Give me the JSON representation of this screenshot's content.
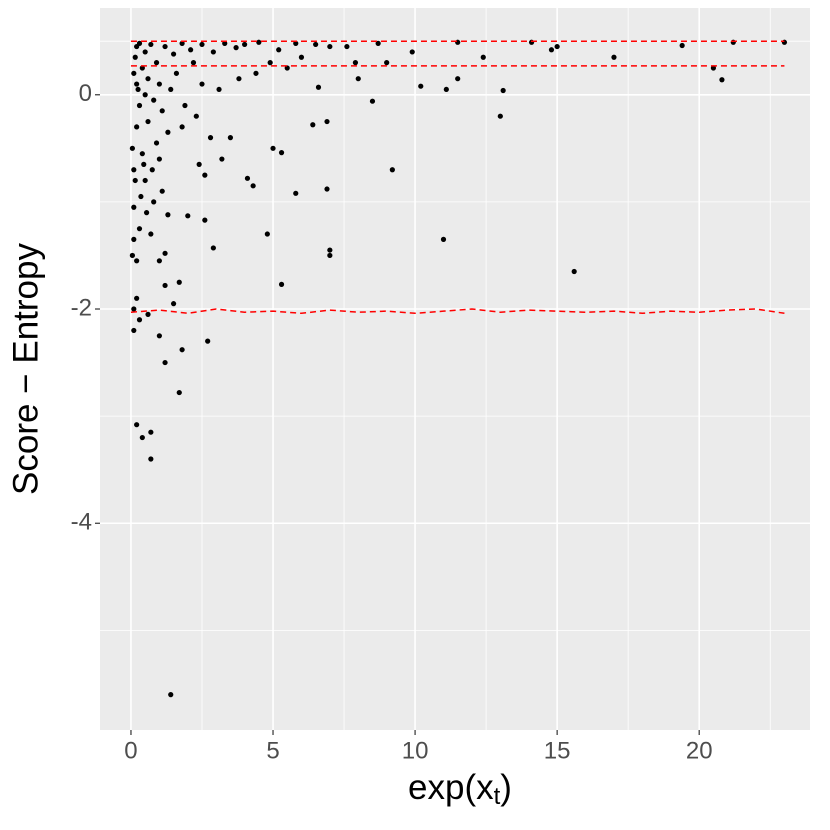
{
  "chart_data": {
    "type": "scatter",
    "x_label": [
      "exp(x",
      "t",
      ")"
    ],
    "y_label": "Score − Entropy",
    "xlim": [
      -1.09,
      23.9
    ],
    "ylim": [
      -5.93,
      0.81
    ],
    "xticks": [
      0,
      5,
      10,
      15,
      20
    ],
    "yticks": [
      -4,
      -2,
      0
    ],
    "x_minor_ticks": [
      2.5,
      7.5,
      12.5,
      17.5,
      22.5
    ],
    "y_minor_ticks": [
      -5,
      -3,
      -1,
      0.5
    ],
    "grid": true,
    "background": "#ebebeb",
    "series": [
      {
        "color": "#000000",
        "x": [
          1.4,
          0.2,
          0.4,
          0.7,
          0.7,
          1.7,
          1.2,
          1.0,
          1.8,
          2.7,
          0.1,
          0.3,
          0.6,
          1.5,
          0.2,
          0.1,
          1.2,
          1.7,
          5.3,
          15.6,
          1.0,
          0.2,
          1.2,
          0.1,
          0.7,
          2.9,
          4.8,
          7.0,
          7.0,
          11.0,
          0.1,
          0.8,
          1.3,
          2.0,
          2.6,
          0.1,
          5.8,
          6.9,
          9.2,
          4.3,
          4.1,
          0.5,
          1.1,
          2.6,
          3.2,
          5.0,
          5.3,
          2.4,
          13.0,
          6.4,
          6.9,
          3.5,
          2.8,
          1.8,
          8.5,
          13.1,
          10.2,
          11.1,
          6.6,
          11.5,
          20.5,
          20.8,
          8.0,
          9.0,
          12.4,
          17.0,
          14.8,
          15.0,
          19.4,
          14.1,
          21.2,
          23.0,
          11.5,
          9.9,
          8.7,
          7.6,
          7.9,
          7.0,
          6.0,
          5.5,
          4.9,
          5.2,
          4.4,
          3.8,
          3.1,
          2.5,
          2.2,
          1.6,
          1.0,
          0.5,
          0.3,
          0.6,
          0.2,
          0.9,
          0.4,
          1.3,
          0.15,
          0.2,
          0.3,
          0.5,
          0.7,
          0.9,
          1.2,
          1.5,
          1.8,
          2.1,
          2.5,
          2.9,
          3.3,
          3.7,
          4.0,
          4.5,
          5.8,
          6.5,
          0.1,
          0.25,
          0.4,
          0.6,
          0.8,
          1.1,
          1.4,
          1.9,
          2.3,
          0.05,
          0.15,
          0.35,
          0.55,
          0.05,
          0.3,
          0.45,
          0.75,
          1.0,
          0.2
        ],
        "values": [
          -5.6,
          -3.08,
          -3.2,
          -3.15,
          -3.4,
          -2.78,
          -2.5,
          -2.25,
          -2.38,
          -2.3,
          -2.2,
          -2.1,
          -2.05,
          -1.95,
          -1.9,
          -2.0,
          -1.78,
          -1.75,
          -1.77,
          -1.65,
          -1.55,
          -1.55,
          -1.48,
          -1.35,
          -1.3,
          -1.43,
          -1.3,
          -1.45,
          -1.5,
          -1.35,
          -1.05,
          -1.0,
          -1.12,
          -1.13,
          -1.17,
          -0.7,
          -0.92,
          -0.88,
          -0.7,
          -0.85,
          -0.78,
          -0.8,
          -0.9,
          -0.75,
          -0.6,
          -0.5,
          -0.54,
          -0.65,
          -0.2,
          -0.28,
          -0.25,
          -0.4,
          -0.4,
          -0.3,
          -0.06,
          0.04,
          0.08,
          0.05,
          0.07,
          0.15,
          0.25,
          0.14,
          0.15,
          0.3,
          0.35,
          0.35,
          0.42,
          0.45,
          0.46,
          0.49,
          0.49,
          0.49,
          0.49,
          0.4,
          0.48,
          0.45,
          0.3,
          0.45,
          0.35,
          0.25,
          0.3,
          0.42,
          0.2,
          0.15,
          0.05,
          0.1,
          0.3,
          0.2,
          0.1,
          0.0,
          -0.1,
          -0.25,
          -0.3,
          -0.45,
          -0.55,
          -0.35,
          0.35,
          0.45,
          0.48,
          0.4,
          0.47,
          0.3,
          0.45,
          0.38,
          0.48,
          0.42,
          0.47,
          0.4,
          0.48,
          0.44,
          0.47,
          0.49,
          0.48,
          0.47,
          0.2,
          0.05,
          0.25,
          0.15,
          -0.05,
          -0.15,
          0.05,
          -0.1,
          -0.2,
          -0.5,
          -0.8,
          -0.95,
          -1.1,
          -1.5,
          -1.25,
          -0.65,
          -0.7,
          -0.6,
          0.1
        ]
      }
    ],
    "lines": [
      {
        "color": "#ff0000",
        "x": [
          0,
          23
        ],
        "values": [
          0.5,
          0.5
        ]
      },
      {
        "color": "#ff0000",
        "x": [
          0,
          23
        ],
        "values": [
          0.27,
          0.27
        ]
      },
      {
        "color": "#ff0000",
        "x": [
          0,
          1,
          2,
          3,
          4,
          5,
          6,
          7,
          8,
          9,
          10,
          11,
          12,
          13,
          14,
          15,
          16,
          17,
          18,
          19,
          20,
          21,
          22,
          23
        ],
        "values": [
          -2.03,
          -2.01,
          -2.04,
          -2.0,
          -2.03,
          -2.02,
          -2.04,
          -2.01,
          -2.03,
          -2.02,
          -2.04,
          -2.02,
          -2.0,
          -2.03,
          -2.01,
          -2.02,
          -2.03,
          -2.02,
          -2.04,
          -2.02,
          -2.03,
          -2.01,
          -2.0,
          -2.04
        ]
      }
    ]
  }
}
